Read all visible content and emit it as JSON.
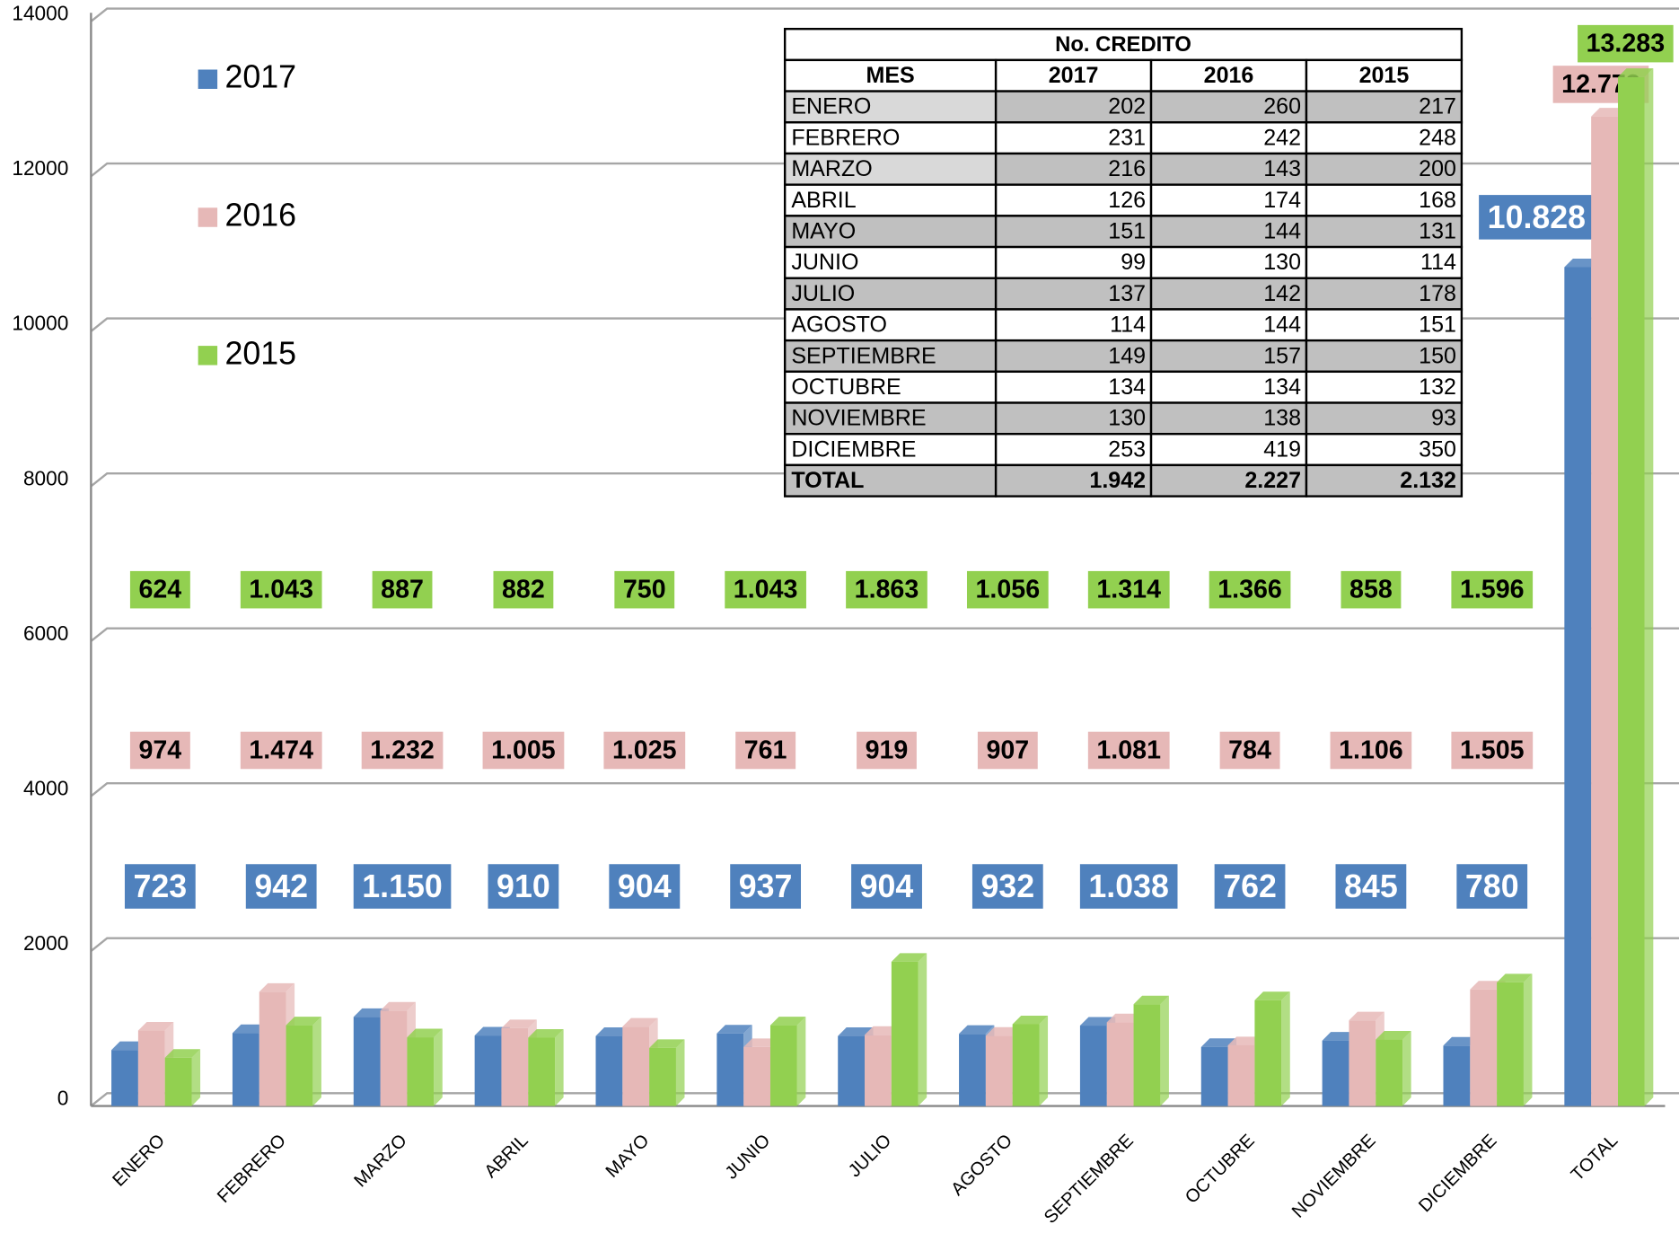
{
  "chart_data": {
    "type": "bar",
    "categories": [
      "ENERO",
      "FEBRERO",
      "MARZO",
      "ABRIL",
      "MAYO",
      "JUNIO",
      "JULIO",
      "AGOSTO",
      "SEPTIEMBRE",
      "OCTUBRE",
      "NOVIEMBRE",
      "DICIEMBRE",
      "TOTAL"
    ],
    "series": [
      {
        "name": "2017",
        "color": "#4f81bd",
        "values": [
          723,
          942,
          1150,
          910,
          904,
          937,
          904,
          932,
          1038,
          762,
          845,
          780,
          10828
        ],
        "value_labels": [
          "723",
          "942",
          "1.150",
          "910",
          "904",
          "937",
          "904",
          "932",
          "1.038",
          "762",
          "845",
          "780",
          "10.828"
        ]
      },
      {
        "name": "2016",
        "color": "#e6b8b7",
        "values": [
          974,
          1474,
          1232,
          1005,
          1025,
          761,
          919,
          907,
          1081,
          784,
          1106,
          1505,
          12773
        ],
        "value_labels": [
          "974",
          "1.474",
          "1.232",
          "1.005",
          "1.025",
          "761",
          "919",
          "907",
          "1.081",
          "784",
          "1.106",
          "1.505",
          "12.773"
        ]
      },
      {
        "name": "2015",
        "color": "#92d050",
        "values": [
          624,
          1043,
          887,
          882,
          750,
          1043,
          1863,
          1056,
          1314,
          1366,
          858,
          1596,
          13283
        ],
        "value_labels": [
          "624",
          "1.043",
          "887",
          "882",
          "750",
          "1.043",
          "1.863",
          "1.056",
          "1.314",
          "1.366",
          "858",
          "1.596",
          "13.283"
        ]
      }
    ],
    "ylim": [
      0,
      14000
    ],
    "yticks": [
      0,
      2000,
      4000,
      6000,
      8000,
      10000,
      12000,
      14000
    ],
    "grid": true,
    "legend": "left"
  },
  "table": {
    "title": "No. CREDITO",
    "header": [
      "MES",
      "2017",
      "2016",
      "2015"
    ],
    "rows": [
      [
        "ENERO",
        "202",
        "260",
        "217"
      ],
      [
        "FEBRERO",
        "231",
        "242",
        "248"
      ],
      [
        "MARZO",
        "216",
        "143",
        "200"
      ],
      [
        "ABRIL",
        "126",
        "174",
        "168"
      ],
      [
        "MAYO",
        "151",
        "144",
        "131"
      ],
      [
        "JUNIO",
        "99",
        "130",
        "114"
      ],
      [
        "JULIO",
        "137",
        "142",
        "178"
      ],
      [
        "AGOSTO",
        "114",
        "144",
        "151"
      ],
      [
        "SEPTIEMBRE",
        "149",
        "157",
        "150"
      ],
      [
        "OCTUBRE",
        "134",
        "134",
        "132"
      ],
      [
        "NOVIEMBRE",
        "130",
        "138",
        "93"
      ],
      [
        "DICIEMBRE",
        "253",
        "419",
        "350"
      ]
    ],
    "total": [
      "TOTAL",
      "1.942",
      "2.227",
      "2.132"
    ]
  }
}
